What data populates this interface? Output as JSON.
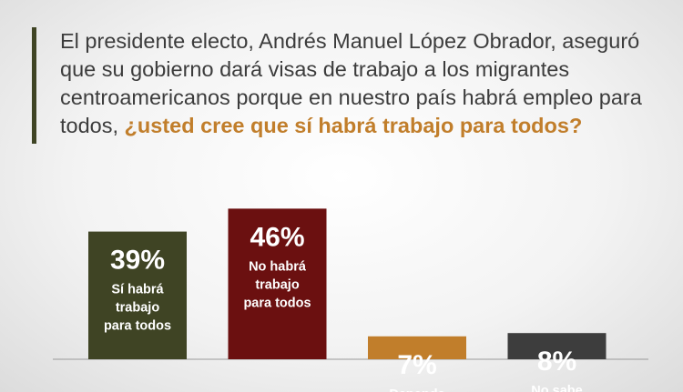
{
  "colors": {
    "accent_bar": "#3f4424",
    "text": "#3c3c3c",
    "highlight": "#c17e2b",
    "baseline": "#9a9a9a"
  },
  "question": {
    "text": "El presidente electo, Andrés Manuel López Obrador, aseguró que su gobierno dará visas de trabajo a los migrantes centroamericanos porque en nuestro país habrá empleo para todos, ",
    "highlight": "¿usted cree que sí habrá trabajo para todos?"
  },
  "chart_data": {
    "type": "bar",
    "categories": [
      "Sí habrá trabajo para todos",
      "No habrá trabajo para todos",
      "Depende",
      "No sabe"
    ],
    "category_lines": [
      [
        "Sí habrá",
        "trabajo",
        "para todos"
      ],
      [
        "No habrá",
        "trabajo",
        "para todos"
      ],
      [
        "Depende"
      ],
      [
        "No sabe"
      ]
    ],
    "values": [
      39,
      46,
      7,
      8
    ],
    "value_labels": [
      "39%",
      "46%",
      "7%",
      "8%"
    ],
    "colors": [
      "#3f4424",
      "#6b1010",
      "#c17e2b",
      "#3d3d3d"
    ],
    "title": "",
    "xlabel": "",
    "ylabel": "",
    "grid": false,
    "legend": "none"
  }
}
